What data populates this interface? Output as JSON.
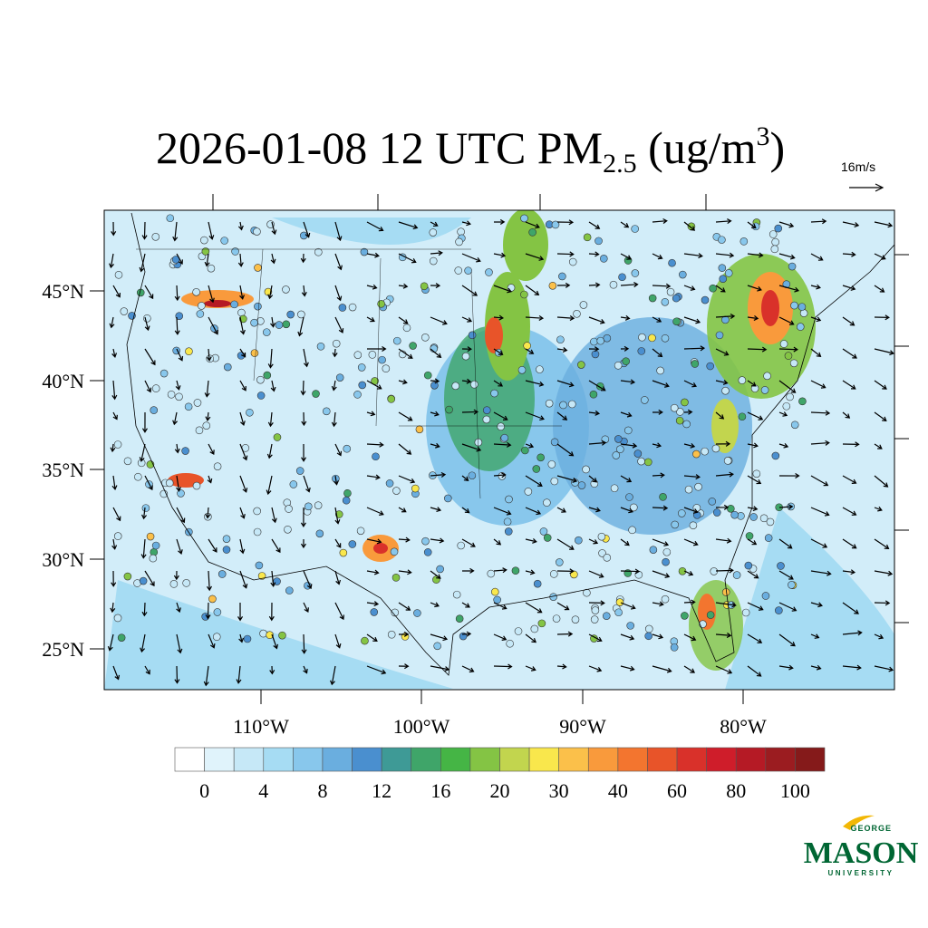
{
  "title": {
    "main": "2026-01-08 12 UTC PM",
    "sub": "2.5",
    "unit": " (ug/m",
    "sup": "3",
    "close": ")"
  },
  "wind_reference": "16m/s",
  "lat_labels": [
    "45°N",
    "40°N",
    "35°N",
    "30°N",
    "25°N"
  ],
  "lon_labels": [
    "110°W",
    "100°W",
    "90°W",
    "80°W"
  ],
  "colorbar": {
    "colors": [
      "#ffffff",
      "#e0f3fb",
      "#c6e8f7",
      "#a6dcf3",
      "#88c7ec",
      "#6aaedf",
      "#4a8fcf",
      "#3e9a96",
      "#3fa569",
      "#45b545",
      "#84c444",
      "#c2d54e",
      "#f9e74c",
      "#fbc04a",
      "#f99a3c",
      "#f3752f",
      "#e85429",
      "#d9312a",
      "#cf1d2a",
      "#b51a25",
      "#9b1c20",
      "#851a1a"
    ],
    "labels": [
      "0",
      "4",
      "8",
      "12",
      "16",
      "20",
      "30",
      "40",
      "60",
      "80",
      "100"
    ]
  },
  "logo": {
    "top": "GEORGE",
    "main": "MASON",
    "bottom": "UNIVERSITY"
  }
}
